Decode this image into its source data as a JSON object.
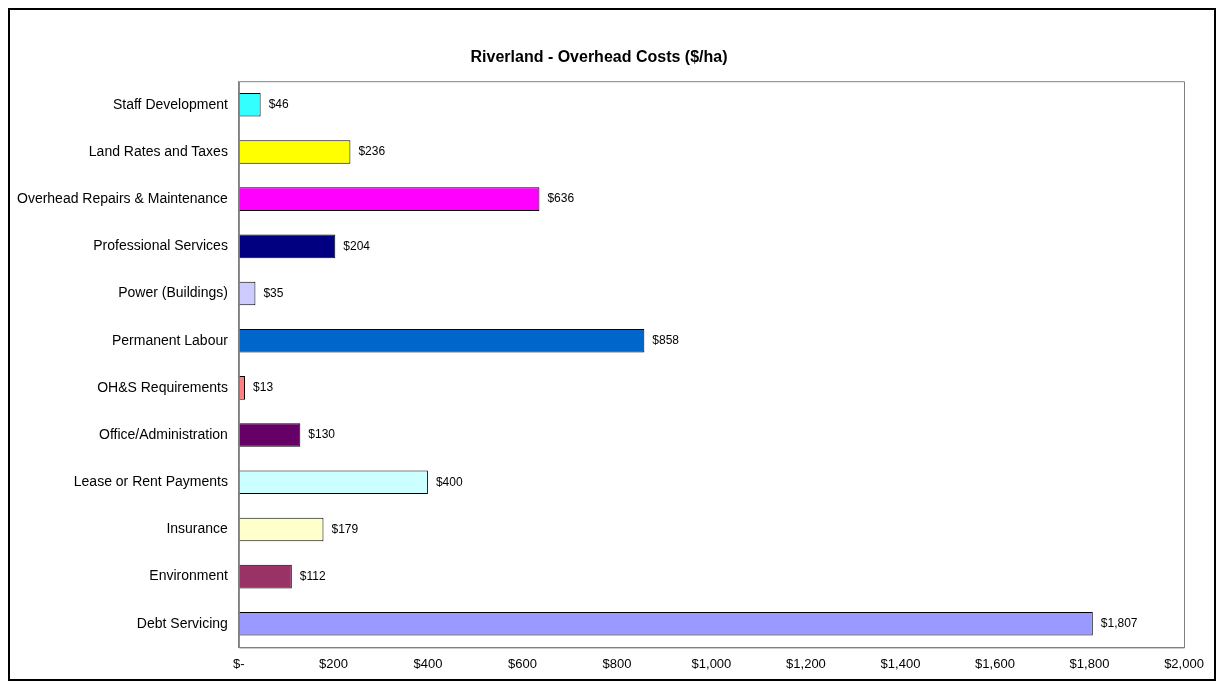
{
  "chart_data": {
    "type": "bar",
    "orientation": "horizontal",
    "title": "Riverland - Overhead Costs ($/ha)",
    "categories": [
      "Staff Development",
      "Land Rates and Taxes",
      "Overhead Repairs & Maintenance",
      "Professional Services",
      "Power (Buildings)",
      "Permanent Labour",
      "OH&S Requirements",
      "Office/Administration",
      "Lease or Rent Payments",
      "Insurance",
      "Environment",
      "Debt Servicing"
    ],
    "values": [
      46,
      236,
      636,
      204,
      35,
      858,
      13,
      130,
      400,
      179,
      112,
      1807
    ],
    "value_labels": [
      "$46",
      "$236",
      "$636",
      "$204",
      "$35",
      "$858",
      "$13",
      "$130",
      "$400",
      "$179",
      "$112",
      "$1,807"
    ],
    "colors": [
      "#33ffff",
      "#ffff00",
      "#ff00ff",
      "#000080",
      "#ccccff",
      "#0066cc",
      "#ff8080",
      "#660066",
      "#ccffff",
      "#ffffcc",
      "#993366",
      "#9999ff"
    ],
    "xlim": [
      0,
      2000
    ],
    "xticks": [
      {
        "value": 0,
        "label": "$-"
      },
      {
        "value": 200,
        "label": "$200"
      },
      {
        "value": 400,
        "label": "$400"
      },
      {
        "value": 600,
        "label": "$600"
      },
      {
        "value": 800,
        "label": "$800"
      },
      {
        "value": 1000,
        "label": "$1,000"
      },
      {
        "value": 1200,
        "label": "$1,200"
      },
      {
        "value": 1400,
        "label": "$1,400"
      },
      {
        "value": 1600,
        "label": "$1,600"
      },
      {
        "value": 1800,
        "label": "$1,800"
      },
      {
        "value": 2000,
        "label": "$2,000"
      }
    ],
    "grid": false,
    "legend": false
  }
}
